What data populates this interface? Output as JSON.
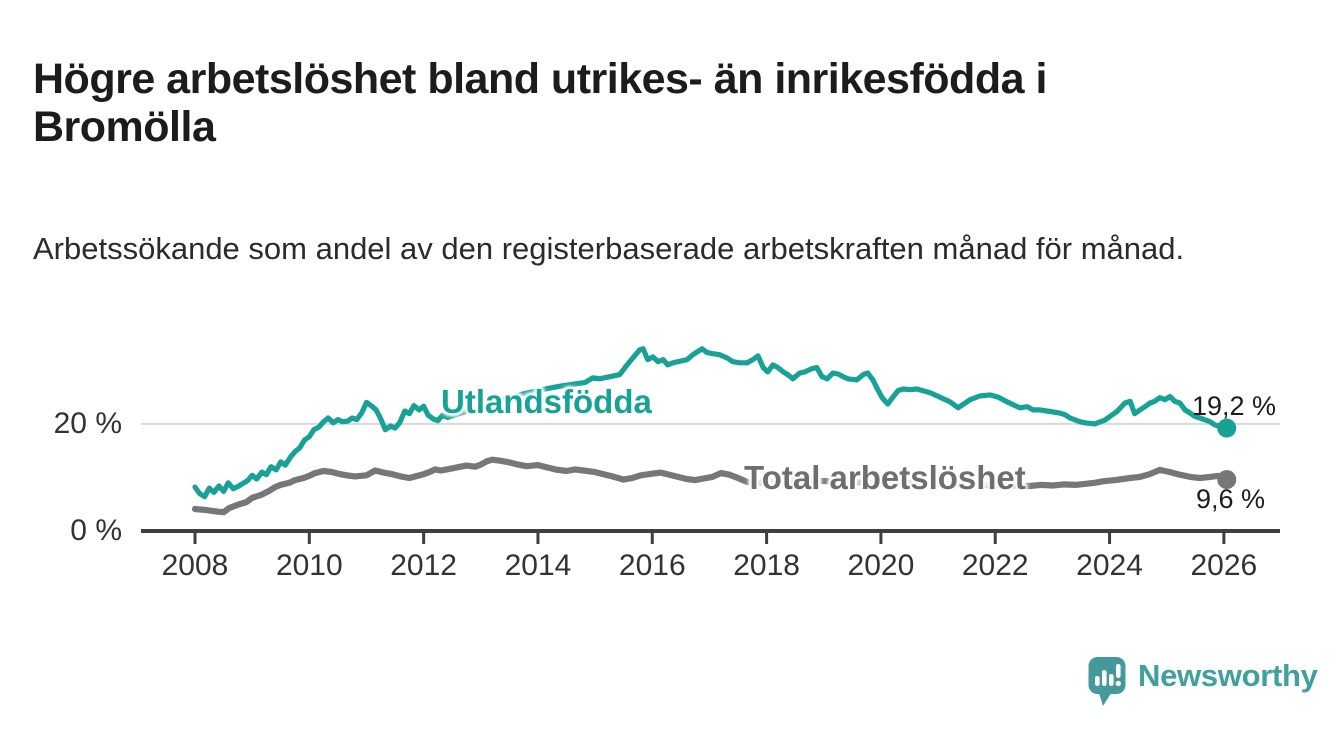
{
  "chart_data": {
    "type": "line",
    "title": "Högre arbetslöshet bland utrikes- än inrikesfödda i Bromölla",
    "subtitle": "Arbetssökande som andel av den registerbaserade arbetskraften månad för månad.",
    "x_unit": "year",
    "y_unit": "%",
    "x_domain": [
      2008,
      2026.1
    ],
    "ylim": [
      0,
      37
    ],
    "grid": "y-only",
    "legend_position": "inline-labels-on-lines",
    "x_ticks": [
      2008,
      2010,
      2012,
      2014,
      2016,
      2018,
      2020,
      2022,
      2024,
      2026
    ],
    "y_ticks": [
      {
        "value": 0,
        "label": "0 %"
      },
      {
        "value": 20,
        "label": "20 %"
      }
    ],
    "series": [
      {
        "name": "Utlandsfödda",
        "color": "#17a295",
        "end_value": 19.2,
        "end_label": "19,2 %",
        "points": [
          [
            2008.0,
            8.2
          ],
          [
            2008.08,
            7.0
          ],
          [
            2008.17,
            6.4
          ],
          [
            2008.25,
            8.0
          ],
          [
            2008.33,
            7.2
          ],
          [
            2008.42,
            8.4
          ],
          [
            2008.5,
            7.4
          ],
          [
            2008.58,
            9.0
          ],
          [
            2008.67,
            7.9
          ],
          [
            2008.75,
            8.3
          ],
          [
            2008.92,
            9.4
          ],
          [
            2009.0,
            10.4
          ],
          [
            2009.08,
            9.7
          ],
          [
            2009.17,
            11.0
          ],
          [
            2009.25,
            10.5
          ],
          [
            2009.33,
            12.0
          ],
          [
            2009.42,
            11.4
          ],
          [
            2009.5,
            12.9
          ],
          [
            2009.58,
            12.3
          ],
          [
            2009.67,
            13.8
          ],
          [
            2009.75,
            14.8
          ],
          [
            2009.83,
            15.5
          ],
          [
            2009.92,
            17.0
          ],
          [
            2010.0,
            17.6
          ],
          [
            2010.08,
            18.9
          ],
          [
            2010.17,
            19.4
          ],
          [
            2010.25,
            20.4
          ],
          [
            2010.33,
            21.1
          ],
          [
            2010.42,
            20.2
          ],
          [
            2010.5,
            20.8
          ],
          [
            2010.58,
            20.4
          ],
          [
            2010.67,
            20.5
          ],
          [
            2010.75,
            21.1
          ],
          [
            2010.83,
            20.8
          ],
          [
            2010.92,
            22.1
          ],
          [
            2011.0,
            24.0
          ],
          [
            2011.08,
            23.4
          ],
          [
            2011.17,
            22.6
          ],
          [
            2011.25,
            20.9
          ],
          [
            2011.33,
            18.9
          ],
          [
            2011.42,
            19.6
          ],
          [
            2011.5,
            19.2
          ],
          [
            2011.58,
            20.2
          ],
          [
            2011.67,
            22.4
          ],
          [
            2011.75,
            21.9
          ],
          [
            2011.83,
            23.4
          ],
          [
            2011.92,
            22.6
          ],
          [
            2012.0,
            23.3
          ],
          [
            2012.08,
            21.6
          ],
          [
            2012.17,
            20.9
          ],
          [
            2012.25,
            20.6
          ],
          [
            2012.33,
            21.6
          ],
          [
            2012.42,
            21.2
          ],
          [
            2012.58,
            21.8
          ],
          [
            2012.83,
            22.6
          ],
          [
            2013.08,
            23.4
          ],
          [
            2013.42,
            24.6
          ],
          [
            2013.75,
            25.6
          ],
          [
            2014.08,
            26.4
          ],
          [
            2014.42,
            27.1
          ],
          [
            2014.82,
            27.7
          ],
          [
            2014.96,
            28.6
          ],
          [
            2015.08,
            28.4
          ],
          [
            2015.26,
            28.8
          ],
          [
            2015.43,
            29.2
          ],
          [
            2015.56,
            31.0
          ],
          [
            2015.66,
            32.3
          ],
          [
            2015.78,
            33.8
          ],
          [
            2015.84,
            34.0
          ],
          [
            2015.92,
            32.0
          ],
          [
            2016.01,
            32.5
          ],
          [
            2016.1,
            31.6
          ],
          [
            2016.19,
            32.0
          ],
          [
            2016.27,
            31.0
          ],
          [
            2016.36,
            31.4
          ],
          [
            2016.45,
            31.6
          ],
          [
            2016.61,
            32.0
          ],
          [
            2016.71,
            32.9
          ],
          [
            2016.87,
            34.0
          ],
          [
            2016.96,
            33.3
          ],
          [
            2017.06,
            33.1
          ],
          [
            2017.18,
            32.9
          ],
          [
            2017.31,
            32.3
          ],
          [
            2017.41,
            31.6
          ],
          [
            2017.53,
            31.4
          ],
          [
            2017.66,
            31.4
          ],
          [
            2017.76,
            32.0
          ],
          [
            2017.85,
            32.7
          ],
          [
            2017.94,
            30.5
          ],
          [
            2018.02,
            29.7
          ],
          [
            2018.11,
            31.0
          ],
          [
            2018.2,
            30.5
          ],
          [
            2018.29,
            29.7
          ],
          [
            2018.37,
            29.2
          ],
          [
            2018.46,
            28.4
          ],
          [
            2018.58,
            29.5
          ],
          [
            2018.67,
            29.7
          ],
          [
            2018.79,
            30.3
          ],
          [
            2018.88,
            30.5
          ],
          [
            2018.97,
            28.8
          ],
          [
            2019.06,
            28.4
          ],
          [
            2019.16,
            29.5
          ],
          [
            2019.25,
            29.3
          ],
          [
            2019.34,
            28.8
          ],
          [
            2019.42,
            28.4
          ],
          [
            2019.58,
            28.2
          ],
          [
            2019.69,
            29.2
          ],
          [
            2019.77,
            29.5
          ],
          [
            2019.86,
            28.2
          ],
          [
            2019.93,
            26.7
          ],
          [
            2020.02,
            24.9
          ],
          [
            2020.12,
            23.7
          ],
          [
            2020.21,
            25.0
          ],
          [
            2020.3,
            26.2
          ],
          [
            2020.39,
            26.5
          ],
          [
            2020.51,
            26.4
          ],
          [
            2020.63,
            26.5
          ],
          [
            2020.86,
            25.8
          ],
          [
            2021.03,
            25.0
          ],
          [
            2021.21,
            24.1
          ],
          [
            2021.35,
            23.0
          ],
          [
            2021.56,
            24.5
          ],
          [
            2021.73,
            25.2
          ],
          [
            2021.91,
            25.4
          ],
          [
            2022.05,
            25.0
          ],
          [
            2022.21,
            24.1
          ],
          [
            2022.31,
            23.6
          ],
          [
            2022.43,
            23.0
          ],
          [
            2022.56,
            23.2
          ],
          [
            2022.66,
            22.6
          ],
          [
            2022.78,
            22.6
          ],
          [
            2022.96,
            22.3
          ],
          [
            2023.13,
            22.0
          ],
          [
            2023.22,
            21.7
          ],
          [
            2023.31,
            21.1
          ],
          [
            2023.48,
            20.4
          ],
          [
            2023.57,
            20.2
          ],
          [
            2023.74,
            20.0
          ],
          [
            2023.92,
            20.7
          ],
          [
            2024.01,
            21.4
          ],
          [
            2024.13,
            22.3
          ],
          [
            2024.27,
            23.9
          ],
          [
            2024.36,
            24.2
          ],
          [
            2024.44,
            21.9
          ],
          [
            2024.53,
            22.6
          ],
          [
            2024.62,
            23.2
          ],
          [
            2024.71,
            23.9
          ],
          [
            2024.79,
            24.2
          ],
          [
            2024.88,
            24.9
          ],
          [
            2024.97,
            24.5
          ],
          [
            2025.06,
            25.1
          ],
          [
            2025.14,
            24.2
          ],
          [
            2025.23,
            23.9
          ],
          [
            2025.32,
            22.6
          ],
          [
            2025.41,
            22.0
          ],
          [
            2025.49,
            21.4
          ],
          [
            2025.58,
            21.1
          ],
          [
            2025.76,
            20.4
          ],
          [
            2025.84,
            19.8
          ],
          [
            2026.05,
            19.2
          ]
        ]
      },
      {
        "name": "Total arbetslöshet",
        "color": "#77777b",
        "label_color": "#6e6e72",
        "end_value": 9.6,
        "end_label": "9,6 %",
        "points": [
          [
            2008.0,
            4.1
          ],
          [
            2008.2,
            3.9
          ],
          [
            2008.4,
            3.6
          ],
          [
            2008.5,
            3.5
          ],
          [
            2008.6,
            4.3
          ],
          [
            2008.75,
            4.9
          ],
          [
            2008.9,
            5.4
          ],
          [
            2009.0,
            6.2
          ],
          [
            2009.15,
            6.7
          ],
          [
            2009.3,
            7.5
          ],
          [
            2009.4,
            8.2
          ],
          [
            2009.5,
            8.6
          ],
          [
            2009.65,
            9.0
          ],
          [
            2009.75,
            9.5
          ],
          [
            2009.9,
            9.9
          ],
          [
            2010.0,
            10.3
          ],
          [
            2010.1,
            10.8
          ],
          [
            2010.25,
            11.2
          ],
          [
            2010.4,
            11.0
          ],
          [
            2010.5,
            10.7
          ],
          [
            2010.65,
            10.4
          ],
          [
            2010.8,
            10.2
          ],
          [
            2011.0,
            10.4
          ],
          [
            2011.15,
            11.3
          ],
          [
            2011.3,
            10.9
          ],
          [
            2011.45,
            10.6
          ],
          [
            2011.6,
            10.2
          ],
          [
            2011.75,
            9.9
          ],
          [
            2011.9,
            10.3
          ],
          [
            2012.0,
            10.6
          ],
          [
            2012.1,
            11.0
          ],
          [
            2012.2,
            11.5
          ],
          [
            2012.3,
            11.3
          ],
          [
            2012.45,
            11.6
          ],
          [
            2012.6,
            11.9
          ],
          [
            2012.75,
            12.2
          ],
          [
            2012.9,
            12.0
          ],
          [
            2013.0,
            12.4
          ],
          [
            2013.1,
            13.0
          ],
          [
            2013.2,
            13.3
          ],
          [
            2013.35,
            13.1
          ],
          [
            2013.5,
            12.8
          ],
          [
            2013.65,
            12.4
          ],
          [
            2013.8,
            12.1
          ],
          [
            2014.0,
            12.3
          ],
          [
            2014.15,
            11.9
          ],
          [
            2014.3,
            11.5
          ],
          [
            2014.5,
            11.2
          ],
          [
            2014.65,
            11.5
          ],
          [
            2014.8,
            11.3
          ],
          [
            2015.0,
            11.0
          ],
          [
            2015.15,
            10.6
          ],
          [
            2015.3,
            10.2
          ],
          [
            2015.5,
            9.6
          ],
          [
            2015.65,
            9.9
          ],
          [
            2015.8,
            10.4
          ],
          [
            2016.0,
            10.7
          ],
          [
            2016.15,
            10.9
          ],
          [
            2016.3,
            10.5
          ],
          [
            2016.45,
            10.1
          ],
          [
            2016.6,
            9.7
          ],
          [
            2016.75,
            9.5
          ],
          [
            2016.9,
            9.8
          ],
          [
            2017.05,
            10.1
          ],
          [
            2017.2,
            10.8
          ],
          [
            2017.35,
            10.5
          ],
          [
            2017.5,
            9.9
          ],
          [
            2017.65,
            9.2
          ],
          [
            2017.8,
            9.0
          ],
          [
            2018.3,
            9.3
          ],
          [
            2018.8,
            9.4
          ],
          [
            2019.3,
            9.2
          ],
          [
            2019.8,
            9.0
          ],
          [
            2020.3,
            9.1
          ],
          [
            2020.8,
            8.9
          ],
          [
            2021.3,
            8.7
          ],
          [
            2021.8,
            8.6
          ],
          [
            2022.3,
            8.5
          ],
          [
            2022.6,
            8.4
          ],
          [
            2022.8,
            8.6
          ],
          [
            2023.0,
            8.5
          ],
          [
            2023.2,
            8.7
          ],
          [
            2023.4,
            8.6
          ],
          [
            2023.74,
            9.0
          ],
          [
            2023.9,
            9.3
          ],
          [
            2024.1,
            9.5
          ],
          [
            2024.36,
            9.9
          ],
          [
            2024.53,
            10.1
          ],
          [
            2024.7,
            10.6
          ],
          [
            2024.88,
            11.4
          ],
          [
            2025.06,
            11.0
          ],
          [
            2025.23,
            10.5
          ],
          [
            2025.41,
            10.1
          ],
          [
            2025.58,
            9.9
          ],
          [
            2025.76,
            10.1
          ],
          [
            2025.9,
            10.3
          ],
          [
            2026.05,
            9.6
          ]
        ]
      }
    ],
    "colors": {
      "accent_teal": "#17a295",
      "line_gray": "#77777b",
      "gridline": "#d9d9d9",
      "axis": "#3f3f3f",
      "text_dark": "#1c1c1c"
    }
  },
  "branding": {
    "logo_text": "Newsworthy",
    "logo_color": "#3fa09c"
  }
}
